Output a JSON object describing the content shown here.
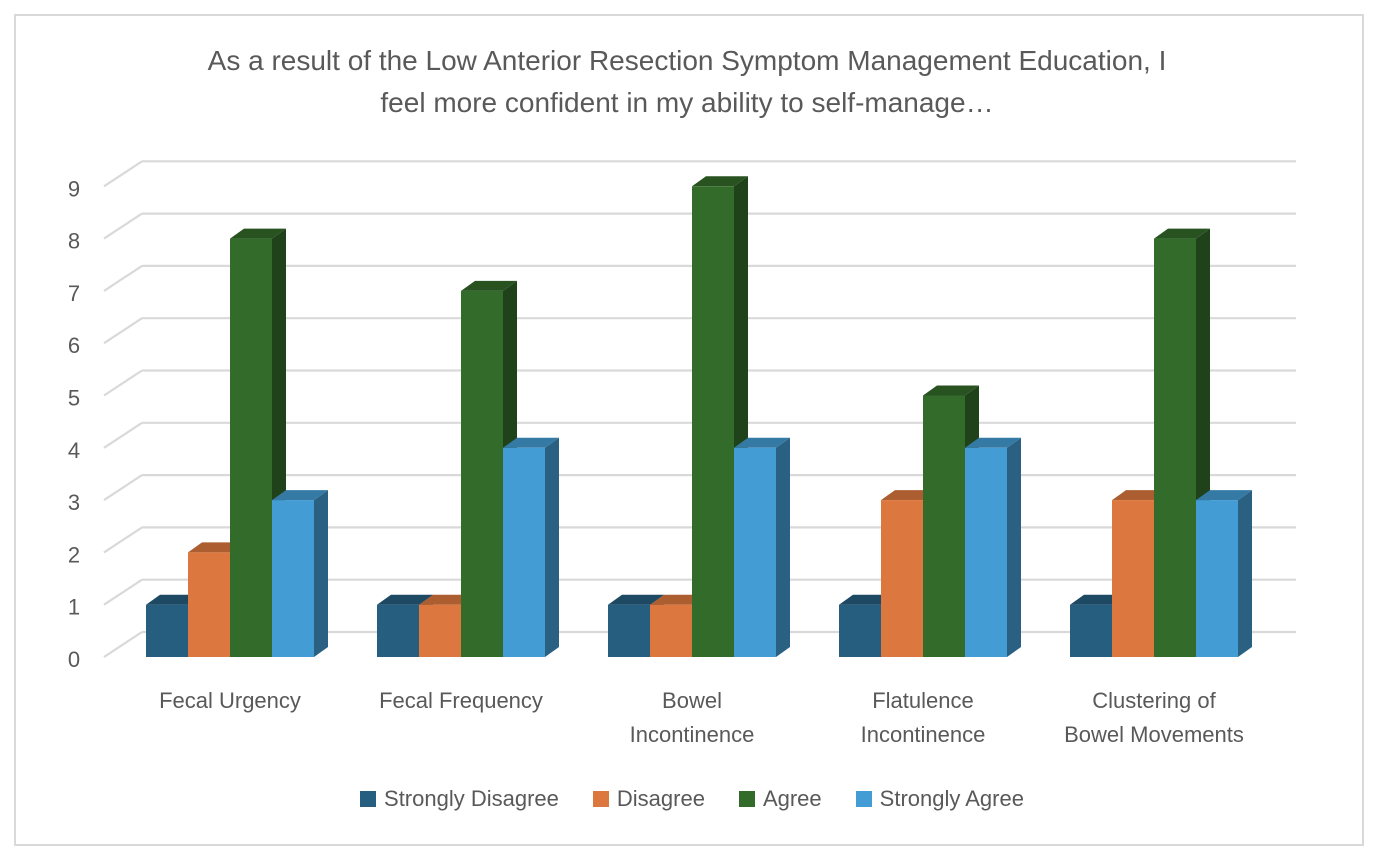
{
  "chart_data": {
    "type": "bar",
    "title_lines": [
      "As a result of the Low Anterior Resection Symptom Management Education, I",
      "feel more confident in my ability to self-manage…"
    ],
    "categories": [
      [
        "Fecal Urgency"
      ],
      [
        "Fecal Frequency"
      ],
      [
        "Bowel",
        "Incontinence"
      ],
      [
        "Flatulence",
        "Incontinence"
      ],
      [
        "Clustering of",
        "Bowel Movements"
      ]
    ],
    "series": [
      {
        "name": "Strongly Disagree",
        "color": "#255e7e",
        "values": [
          1,
          1,
          1,
          1,
          1
        ]
      },
      {
        "name": "Disagree",
        "color": "#dc783f",
        "values": [
          2,
          1,
          1,
          3,
          3
        ]
      },
      {
        "name": "Agree",
        "color": "#336b2a",
        "values": [
          8,
          7,
          9,
          5,
          8
        ]
      },
      {
        "name": "Strongly Agree",
        "color": "#439cd4",
        "values": [
          3,
          4,
          4,
          4,
          3
        ]
      }
    ],
    "y_ticks": [
      "0",
      "1",
      "2",
      "3",
      "4",
      "5",
      "6",
      "7",
      "8",
      "9"
    ],
    "ylim": [
      0,
      9
    ],
    "grid": true,
    "three_d": true,
    "legend_position": "bottom"
  }
}
